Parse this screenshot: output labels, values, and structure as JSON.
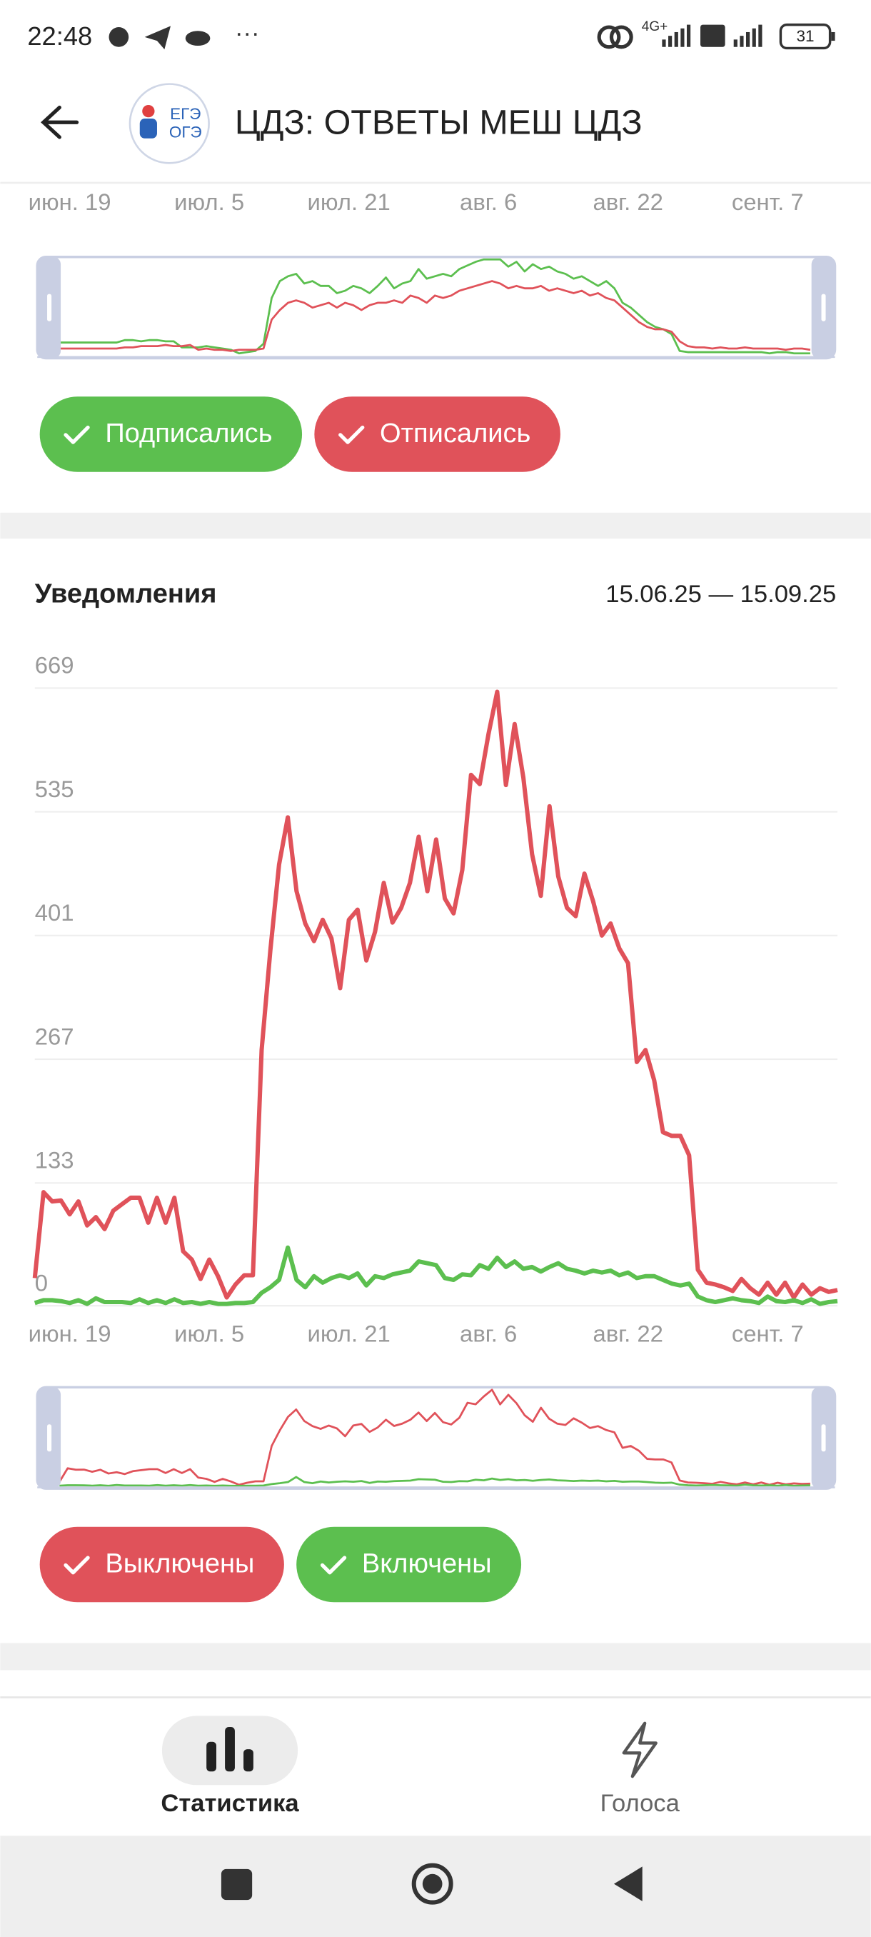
{
  "status_bar": {
    "time": "22:48",
    "network": "4G+",
    "battery": "31"
  },
  "header": {
    "title": "ЦДЗ: ОТВЕТЫ МЕШ ЦДЗ",
    "logo_lines": [
      "ЕГЭ",
      "ОГЭ"
    ]
  },
  "subscriptions": {
    "chart_data": {
      "type": "line",
      "categories": [
        null,
        null,
        null,
        null,
        "июн. 19",
        null,
        null,
        null,
        null,
        null,
        null,
        null,
        null,
        null,
        null,
        null,
        null,
        null,
        null,
        null,
        "июл. 5",
        null,
        null,
        null,
        null,
        null,
        null,
        null,
        null,
        null,
        null,
        null,
        null,
        null,
        null,
        null,
        "июл. 21",
        null,
        null,
        null,
        null,
        null,
        null,
        null,
        null,
        null,
        null,
        null,
        null,
        null,
        null,
        null,
        "авг. 6",
        null,
        null,
        null,
        null,
        null,
        null,
        null,
        null,
        null,
        null,
        null,
        null,
        null,
        null,
        null,
        "авг. 22",
        null,
        null,
        null,
        null,
        null,
        null,
        null,
        null,
        null,
        null,
        null,
        null,
        null,
        null,
        null,
        "сент. 7",
        null,
        null,
        null,
        null,
        null,
        null,
        null,
        null
      ],
      "series": [
        {
          "name": "Подписались",
          "color": "#5cbf4f",
          "values": [
            11,
            11,
            11,
            11,
            11,
            11,
            11,
            11,
            13,
            13,
            12,
            13,
            13,
            12,
            12,
            7,
            7,
            7,
            8,
            7,
            6,
            5,
            2,
            3,
            4,
            10,
            48,
            62,
            66,
            68,
            60,
            62,
            58,
            58,
            52,
            54,
            58,
            56,
            52,
            58,
            65,
            56,
            60,
            62,
            72,
            64,
            66,
            68,
            66,
            72,
            75,
            78,
            80,
            80,
            80,
            74,
            78,
            70,
            76,
            72,
            74,
            70,
            68,
            64,
            66,
            62,
            58,
            62,
            56,
            44,
            40,
            34,
            28,
            24,
            22,
            18,
            4,
            3,
            3,
            3,
            3,
            3,
            3,
            3,
            3,
            3,
            3,
            2,
            3,
            3,
            2,
            2,
            2
          ]
        },
        {
          "name": "Отписались",
          "color": "#e0525a",
          "values": [
            6,
            6,
            6,
            6,
            6,
            6,
            6,
            6,
            7,
            7,
            8,
            8,
            8,
            9,
            8,
            8,
            9,
            5,
            6,
            5,
            5,
            4,
            5,
            5,
            5,
            6,
            30,
            38,
            44,
            46,
            44,
            40,
            42,
            44,
            40,
            44,
            42,
            38,
            42,
            44,
            44,
            46,
            44,
            50,
            48,
            44,
            50,
            48,
            50,
            54,
            56,
            58,
            60,
            62,
            60,
            56,
            58,
            56,
            56,
            58,
            54,
            56,
            54,
            52,
            54,
            50,
            52,
            48,
            46,
            40,
            34,
            28,
            24,
            22,
            22,
            20,
            12,
            8,
            7,
            7,
            6,
            7,
            6,
            6,
            7,
            6,
            6,
            6,
            6,
            5,
            6,
            6,
            5
          ]
        }
      ]
    }
  },
  "notifications": {
    "title": "Уведомления",
    "date_range": "15.06.25 — 15.09.25",
    "chart_data": {
      "type": "line",
      "categories": [
        null,
        null,
        null,
        null,
        "июн. 19",
        null,
        null,
        null,
        null,
        null,
        null,
        null,
        null,
        null,
        null,
        null,
        null,
        null,
        null,
        null,
        "июл. 5",
        null,
        null,
        null,
        null,
        null,
        null,
        null,
        null,
        null,
        null,
        null,
        null,
        null,
        null,
        null,
        "июл. 21",
        null,
        null,
        null,
        null,
        null,
        null,
        null,
        null,
        null,
        null,
        null,
        null,
        null,
        null,
        null,
        "авг. 6",
        null,
        null,
        null,
        null,
        null,
        null,
        null,
        null,
        null,
        null,
        null,
        null,
        null,
        null,
        null,
        "авг. 22",
        null,
        null,
        null,
        null,
        null,
        null,
        null,
        null,
        null,
        null,
        null,
        null,
        null,
        null,
        null,
        "сент. 7",
        null,
        null,
        null,
        null,
        null,
        null,
        null,
        null
      ],
      "ylim": [
        0,
        669
      ],
      "yticks": [
        0,
        133,
        267,
        401,
        535,
        669
      ],
      "grid": true,
      "series": [
        {
          "name": "Выключены",
          "color": "#e0525a",
          "values": [
            30,
            123,
            113,
            114,
            99,
            113,
            87,
            96,
            83,
            103,
            110,
            117,
            117,
            90,
            117,
            90,
            117,
            59,
            50,
            29,
            50,
            32,
            9,
            23,
            33,
            33,
            277,
            385,
            478,
            529,
            449,
            414,
            395,
            418,
            398,
            344,
            418,
            429,
            374,
            405,
            458,
            415,
            431,
            458,
            508,
            449,
            505,
            441,
            425,
            472,
            575,
            565,
            619,
            665,
            564,
            630,
            572,
            489,
            444,
            541,
            465,
            431,
            422,
            468,
            438,
            401,
            414,
            387,
            371,
            264,
            277,
            244,
            188,
            184,
            184,
            163,
            39,
            25,
            23,
            20,
            16,
            29,
            19,
            12,
            25,
            12,
            25,
            9,
            23,
            12,
            19,
            15,
            17
          ]
        },
        {
          "name": "Включены",
          "color": "#5cbf4f",
          "values": [
            3,
            6,
            6,
            5,
            3,
            6,
            2,
            8,
            4,
            4,
            4,
            3,
            7,
            3,
            6,
            3,
            7,
            3,
            4,
            2,
            4,
            2,
            2,
            3,
            3,
            4,
            14,
            20,
            28,
            63,
            28,
            20,
            32,
            25,
            30,
            33,
            30,
            35,
            22,
            32,
            30,
            34,
            36,
            38,
            48,
            46,
            44,
            30,
            28,
            34,
            33,
            44,
            40,
            52,
            42,
            48,
            40,
            42,
            37,
            42,
            46,
            40,
            38,
            35,
            38,
            36,
            38,
            33,
            36,
            30,
            32,
            32,
            28,
            24,
            22,
            24,
            10,
            6,
            4,
            6,
            8,
            6,
            5,
            3,
            10,
            5,
            4,
            6,
            3,
            7,
            2,
            4,
            5
          ]
        }
      ]
    }
  },
  "bottom_nav": {
    "items": [
      {
        "label": "Статистика",
        "active": true
      },
      {
        "label": "Голоса",
        "active": false
      }
    ]
  }
}
